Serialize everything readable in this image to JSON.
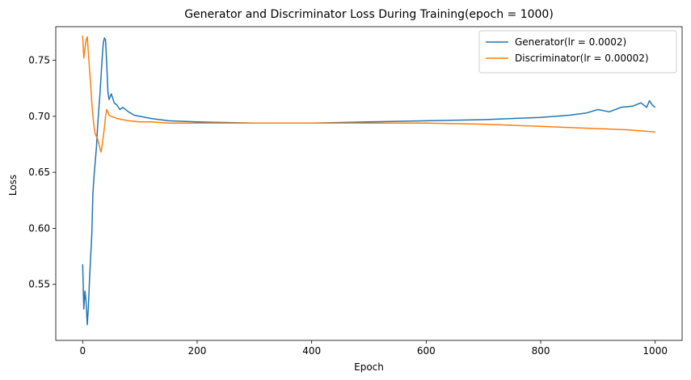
{
  "chart_data": {
    "type": "line",
    "title": "Generator and Discriminator Loss During Training(epoch = 1000)",
    "xlabel": "Epoch",
    "ylabel": "Loss",
    "xlim": [
      -47,
      1047
    ],
    "ylim": [
      0.5,
      0.78
    ],
    "xticks": [
      0,
      200,
      400,
      600,
      800,
      1000
    ],
    "yticks": [
      0.55,
      0.6,
      0.65,
      0.7,
      0.75
    ],
    "ytick_labels": [
      "0.55",
      "0.60",
      "0.65",
      "0.70",
      "0.75"
    ],
    "grid": false,
    "legend_position": "top-right",
    "series": [
      {
        "name": "Generator(lr = 0.0002)",
        "color": "#1f77b4",
        "x": [
          0,
          2,
          4,
          6,
          8,
          10,
          12,
          14,
          16,
          18,
          20,
          22,
          24,
          26,
          28,
          30,
          32,
          34,
          36,
          38,
          40,
          42,
          44,
          46,
          50,
          55,
          60,
          65,
          70,
          80,
          90,
          100,
          120,
          150,
          200,
          300,
          400,
          500,
          600,
          700,
          750,
          800,
          850,
          880,
          900,
          920,
          940,
          960,
          975,
          985,
          990,
          995,
          1000
        ],
        "values": [
          0.568,
          0.528,
          0.544,
          0.535,
          0.514,
          0.53,
          0.555,
          0.575,
          0.595,
          0.632,
          0.648,
          0.66,
          0.672,
          0.69,
          0.705,
          0.718,
          0.735,
          0.752,
          0.765,
          0.77,
          0.768,
          0.748,
          0.722,
          0.715,
          0.72,
          0.712,
          0.71,
          0.706,
          0.708,
          0.704,
          0.701,
          0.7,
          0.698,
          0.696,
          0.695,
          0.694,
          0.694,
          0.695,
          0.696,
          0.697,
          0.698,
          0.699,
          0.701,
          0.703,
          0.706,
          0.704,
          0.708,
          0.709,
          0.712,
          0.708,
          0.714,
          0.71,
          0.708
        ]
      },
      {
        "name": "Discriminator(lr = 0.00002)",
        "color": "#ff7f0e",
        "x": [
          0,
          2,
          4,
          6,
          8,
          10,
          12,
          14,
          16,
          18,
          20,
          22,
          24,
          26,
          28,
          30,
          32,
          34,
          36,
          38,
          40,
          42,
          44,
          46,
          50,
          55,
          60,
          70,
          80,
          100,
          120,
          150,
          200,
          300,
          400,
          500,
          600,
          700,
          750,
          800,
          850,
          900,
          950,
          1000
        ],
        "values": [
          0.772,
          0.752,
          0.76,
          0.768,
          0.771,
          0.756,
          0.742,
          0.728,
          0.712,
          0.7,
          0.69,
          0.684,
          0.682,
          0.68,
          0.676,
          0.672,
          0.668,
          0.674,
          0.682,
          0.69,
          0.7,
          0.706,
          0.704,
          0.701,
          0.7,
          0.699,
          0.698,
          0.697,
          0.696,
          0.695,
          0.695,
          0.694,
          0.694,
          0.694,
          0.694,
          0.694,
          0.694,
          0.693,
          0.692,
          0.691,
          0.69,
          0.689,
          0.688,
          0.686
        ]
      }
    ]
  }
}
